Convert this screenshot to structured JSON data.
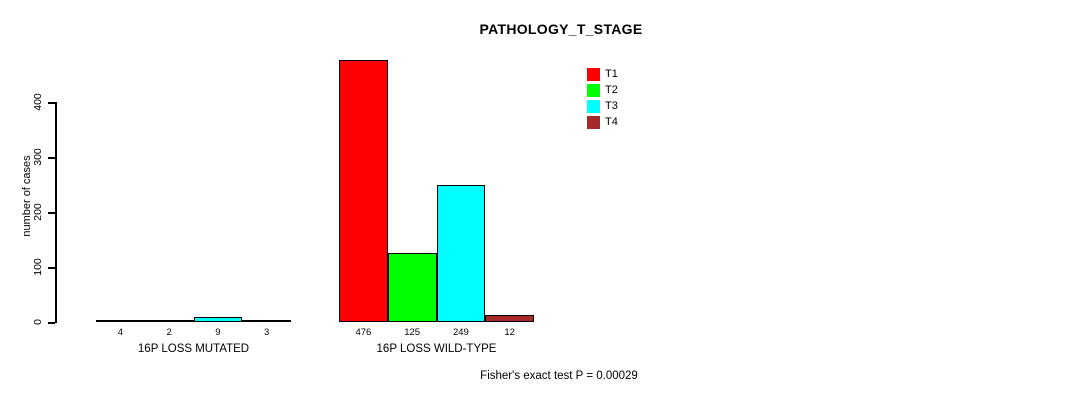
{
  "chart_data": {
    "type": "bar",
    "title": "PATHOLOGY_T_STAGE",
    "ylabel": "number of cases",
    "xlabel": "",
    "ylim": [
      0,
      400
    ],
    "yticks": [
      0,
      100,
      200,
      300,
      400
    ],
    "grid": false,
    "legend_position": "top-right-inside",
    "series": [
      {
        "name": "T1",
        "color": "#ff0000"
      },
      {
        "name": "T2",
        "color": "#00ff00"
      },
      {
        "name": "T3",
        "color": "#00ffff"
      },
      {
        "name": "T4",
        "color": "#a52a2a"
      }
    ],
    "groups": [
      {
        "label": "16P LOSS MUTATED",
        "values": [
          4,
          2,
          9,
          3
        ]
      },
      {
        "label": "16P LOSS WILD-TYPE",
        "values": [
          476,
          125,
          249,
          12
        ]
      }
    ],
    "bar_value_labels_shown": true,
    "annotation": "Fisher's exact test P = 0.00029"
  }
}
